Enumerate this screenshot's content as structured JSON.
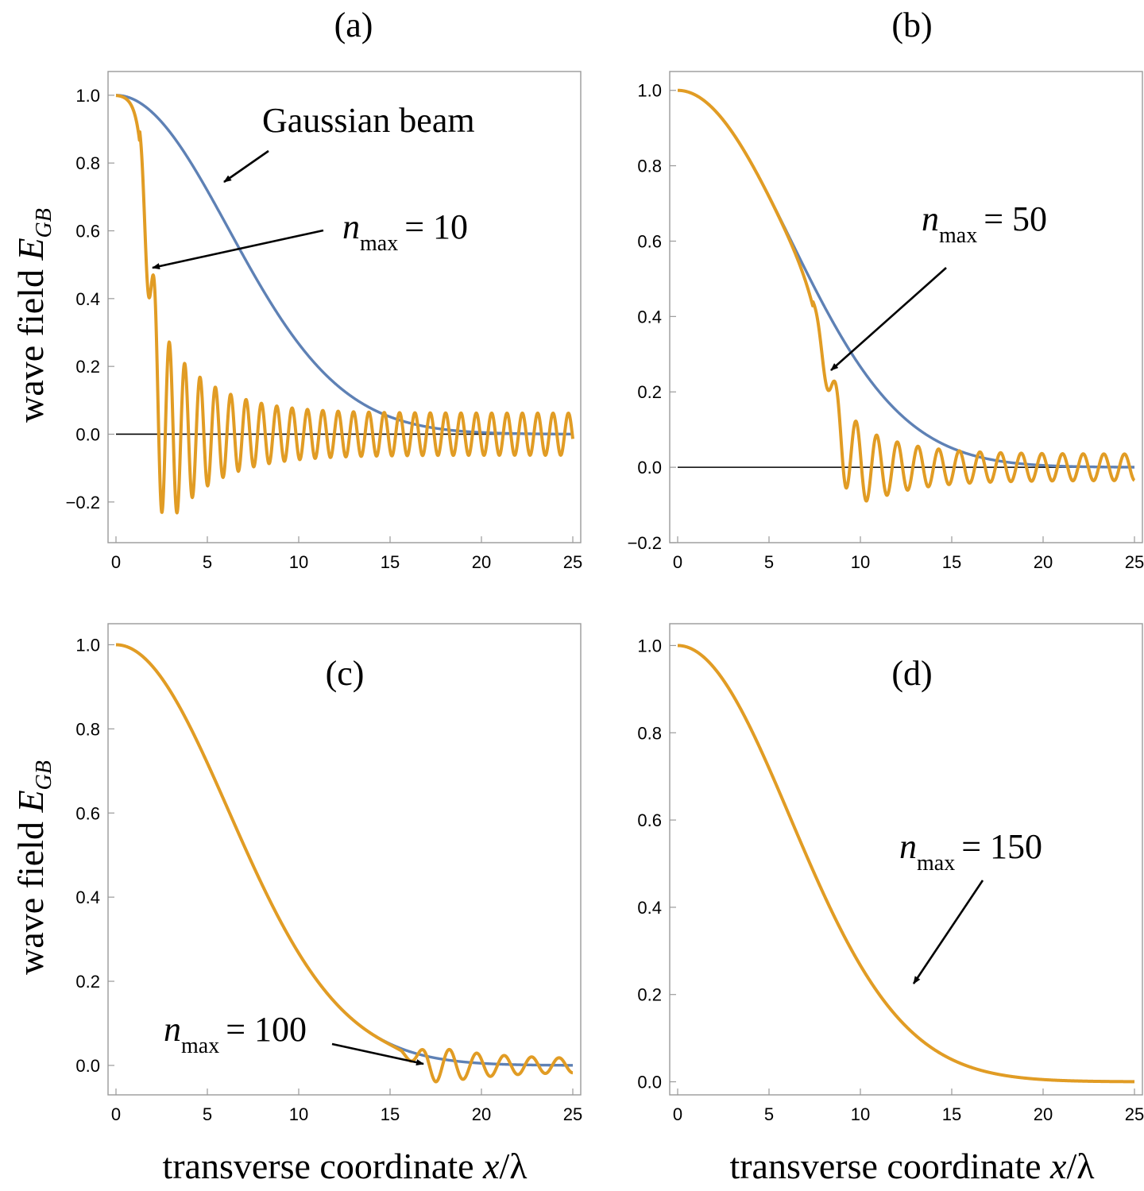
{
  "figure": {
    "xlabel": "transverse coordinate x/λ",
    "ylabel": "wave field E_GB"
  },
  "colors": {
    "gaussian": "#5e81b5",
    "truncated": "#e19c24",
    "axis_frame": "#9a9a9a"
  },
  "chart_data": [
    {
      "type": "line",
      "panel_label": "(a)",
      "xlim": [
        0,
        25
      ],
      "ylim": [
        -0.32,
        1.07
      ],
      "xticks": [
        0,
        5,
        10,
        15,
        20,
        25
      ],
      "yticks": [
        -0.2,
        0.0,
        0.2,
        0.4,
        0.6,
        0.8,
        1.0
      ],
      "tick_labels_x": [
        "0",
        "5",
        "10",
        "15",
        "20",
        "25"
      ],
      "tick_labels_y": [
        "−0.2",
        "0.0",
        "0.2",
        "0.4",
        "0.6",
        "0.8",
        "1.0"
      ],
      "series": [
        {
          "name": "Gaussian beam",
          "model": "gaussian",
          "waist": 8.7
        },
        {
          "name": "n_max = 10",
          "model": "truncated",
          "n_max": 10,
          "cutoff": 1.8,
          "transition_width": 0.25,
          "period": 0.84,
          "envelope": [
            0.3,
            0.062
          ],
          "decay_scale": 2.6,
          "first_min_x": 2.5
        }
      ],
      "annotations": [
        {
          "text": "Gaussian beam",
          "points_to": [
            6,
            0.73
          ]
        },
        {
          "text": "n",
          "subscript": "max",
          "suffix": "= 10",
          "points_to": [
            1.8,
            0.47
          ]
        }
      ]
    },
    {
      "type": "line",
      "panel_label": "(b)",
      "xlim": [
        0,
        25
      ],
      "ylim": [
        -0.2,
        1.05
      ],
      "xticks": [
        0,
        5,
        10,
        15,
        20,
        25
      ],
      "yticks": [
        -0.2,
        0.0,
        0.2,
        0.4,
        0.6,
        0.8,
        1.0
      ],
      "tick_labels_x": [
        "0",
        "5",
        "10",
        "15",
        "20",
        "25"
      ],
      "tick_labels_y": [
        "−0.2",
        "0.0",
        "0.2",
        "0.4",
        "0.6",
        "0.8",
        "1.0"
      ],
      "series": [
        {
          "name": "Gaussian beam",
          "model": "gaussian",
          "waist": 8.7
        },
        {
          "name": "n_max = 50",
          "model": "truncated",
          "n_max": 50,
          "cutoff": 8.4,
          "transition_width": 0.5,
          "period": 1.13,
          "envelope": [
            0.13,
            0.035
          ],
          "decay_scale": 2.6,
          "first_min_x": 9.2
        }
      ],
      "annotations": [
        {
          "text": "n",
          "subscript": "max",
          "suffix": "= 50",
          "points_to": [
            8.5,
            0.25
          ]
        }
      ]
    },
    {
      "type": "line",
      "panel_label": "(c)",
      "xlim": [
        0,
        25
      ],
      "ylim": [
        -0.07,
        1.05
      ],
      "xticks": [
        0,
        5,
        10,
        15,
        20,
        25
      ],
      "yticks": [
        0.0,
        0.2,
        0.4,
        0.6,
        0.8,
        1.0
      ],
      "tick_labels_x": [
        "0",
        "5",
        "10",
        "15",
        "20",
        "25"
      ],
      "tick_labels_y": [
        "0.0",
        "0.2",
        "0.4",
        "0.6",
        "0.8",
        "1.0"
      ],
      "series": [
        {
          "name": "Gaussian beam",
          "model": "gaussian",
          "waist": 8.7
        },
        {
          "name": "n_max = 100",
          "model": "truncated",
          "n_max": 100,
          "cutoff": 16.5,
          "transition_width": 0.45,
          "period": 1.5,
          "envelope": [
            0.045,
            0.015
          ],
          "decay_scale": 3.0,
          "first_min_x": 17.5
        }
      ],
      "annotations": [
        {
          "text": "n",
          "subscript": "max",
          "suffix": "= 100",
          "points_to": [
            17.2,
            0.0
          ]
        }
      ]
    },
    {
      "type": "line",
      "panel_label": "(d)",
      "xlim": [
        0,
        25
      ],
      "ylim": [
        -0.03,
        1.05
      ],
      "xticks": [
        0,
        5,
        10,
        15,
        20,
        25
      ],
      "yticks": [
        0.0,
        0.2,
        0.4,
        0.6,
        0.8,
        1.0
      ],
      "tick_labels_x": [
        "0",
        "5",
        "10",
        "15",
        "20",
        "25"
      ],
      "tick_labels_y": [
        "0.0",
        "0.2",
        "0.4",
        "0.6",
        "0.8",
        "1.0"
      ],
      "series": [
        {
          "name": "Gaussian beam",
          "model": "gaussian",
          "waist": 8.7
        },
        {
          "name": "n_max = 150",
          "model": "gaussian",
          "waist": 8.7
        }
      ],
      "annotations": [
        {
          "text": "n",
          "subscript": "max",
          "suffix": "= 150",
          "points_to": [
            12.8,
            0.2
          ]
        }
      ]
    }
  ]
}
